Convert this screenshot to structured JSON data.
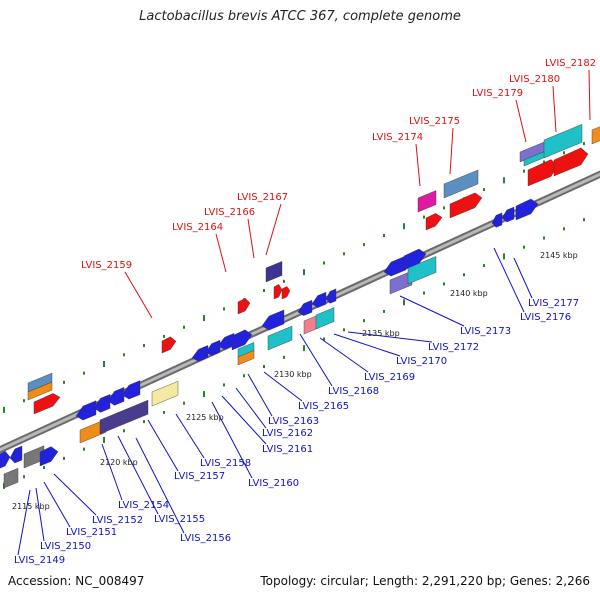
{
  "title": "Lactobacillus brevis ATCC 367, complete genome",
  "footer": {
    "accession": "Accession: NC_008497",
    "topology": "Topology: circular; Length: 2,291,220 bp; Genes: 2,266"
  },
  "colors": {
    "top_label": "#dd1111",
    "bottom_label": "#1111cc",
    "backbone": "#888888",
    "tick": "#228822"
  },
  "kbp_labels": [
    "2115 kbp",
    "2120 kbp",
    "2125 kbp",
    "2130 kbp",
    "2135 kbp",
    "2140 kbp",
    "2145 kbp"
  ],
  "top_genes": [
    "LVIS_2159",
    "LVIS_2164",
    "LVIS_2166",
    "LVIS_2167",
    "LVIS_2174",
    "LVIS_2175",
    "LVIS_2179",
    "LVIS_2180",
    "LVIS_2182"
  ],
  "bottom_genes": [
    "LVIS_2149",
    "LVIS_2150",
    "LVIS_2151",
    "LVIS_2152",
    "LVIS_2154",
    "LVIS_2155",
    "LVIS_2156",
    "LVIS_2157",
    "LVIS_2158",
    "LVIS_2160",
    "LVIS_2161",
    "LVIS_2162",
    "LVIS_2163",
    "LVIS_2165",
    "LVIS_2168",
    "LVIS_2169",
    "LVIS_2170",
    "LVIS_2172",
    "LVIS_2173",
    "LVIS_2176",
    "LVIS_2177"
  ]
}
